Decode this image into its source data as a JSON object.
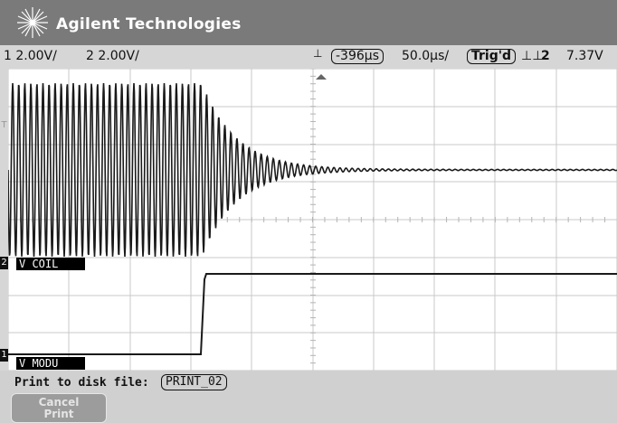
{
  "brand": "Agilent Technologies",
  "status": {
    "ch1_scale": "1 2.00V/",
    "ch2_scale": "2 2.00V/",
    "time_offset": "-396",
    "time_offset_unit": "μs",
    "time_scale": "50.0",
    "time_scale_unit": "μs/",
    "trig_state": "Trig'd",
    "trig_source": "2",
    "trig_level": "7.37V"
  },
  "channels": {
    "coil_label": "V COIL",
    "modu_label": "V MODU",
    "ch2_marker": "2",
    "ch1_marker": "1",
    "trigger_marker": "T"
  },
  "softkeys": {
    "print_label": "Print to disk file:",
    "filename": "PRINT_02",
    "cancel_line1": "Cancel",
    "cancel_line2": "Print"
  }
}
